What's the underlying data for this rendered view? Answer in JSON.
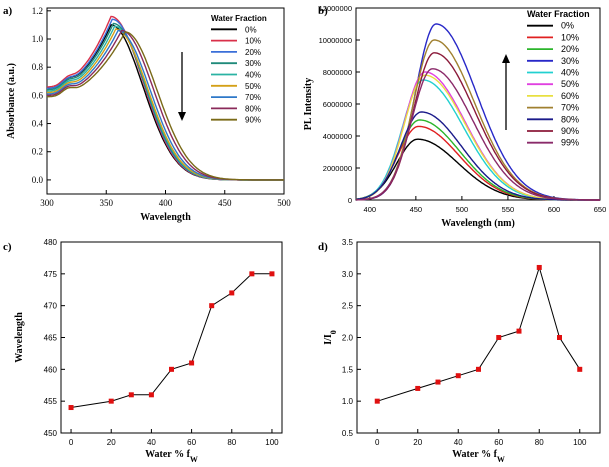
{
  "chart_data": [
    {
      "id": "a",
      "panel_label": "a)",
      "type": "line",
      "xlabel": "Wavelength",
      "ylabel": "Absorbance (a.u.)",
      "xlim": [
        300,
        500
      ],
      "ylim": [
        -0.1,
        1.22
      ],
      "xticks": [
        300,
        350,
        400,
        450,
        500
      ],
      "yticks": [
        0.0,
        0.2,
        0.4,
        0.6,
        0.8,
        1.0,
        1.2
      ],
      "legend_title": "Water Fraction",
      "annotation": "arrow-down",
      "series": [
        {
          "name": "0%",
          "color": "#000000",
          "peak_x": 354,
          "peak_y": 1.1,
          "base": 0.65
        },
        {
          "name": "10%",
          "color": "#d9304a",
          "peak_x": 354,
          "peak_y": 1.16,
          "base": 0.66
        },
        {
          "name": "20%",
          "color": "#3a6fd8",
          "peak_x": 355,
          "peak_y": 1.14,
          "base": 0.65
        },
        {
          "name": "30%",
          "color": "#1f8a7a",
          "peak_x": 356,
          "peak_y": 1.11,
          "base": 0.64
        },
        {
          "name": "40%",
          "color": "#2ab3a3",
          "peak_x": 357,
          "peak_y": 1.09,
          "base": 0.63
        },
        {
          "name": "50%",
          "color": "#d4a017",
          "peak_x": 358,
          "peak_y": 1.07,
          "base": 0.62
        },
        {
          "name": "70%",
          "color": "#2e78c8",
          "peak_x": 360,
          "peak_y": 1.06,
          "base": 0.61
        },
        {
          "name": "80%",
          "color": "#8a2a5a",
          "peak_x": 363,
          "peak_y": 1.06,
          "base": 0.6
        },
        {
          "name": "90%",
          "color": "#7a6a18",
          "peak_x": 366,
          "peak_y": 1.05,
          "base": 0.59
        }
      ]
    },
    {
      "id": "b",
      "panel_label": "b)",
      "type": "line",
      "xlabel": "Wavelength (nm)",
      "ylabel": "PL Intensity",
      "xlim": [
        385,
        650
      ],
      "ylim": [
        0,
        12000000
      ],
      "xticks": [
        400,
        450,
        500,
        550,
        600,
        650
      ],
      "yticks": [
        0,
        2000000,
        4000000,
        6000000,
        8000000,
        10000000,
        12000000
      ],
      "ytick_labels": [
        "0",
        "2000000",
        "4000000",
        "6000000",
        "8000000",
        "10000000",
        "12000000"
      ],
      "legend_title": "Water Fraction",
      "annotation": "arrow-up",
      "series": [
        {
          "name": "0%",
          "color": "#000000",
          "peak_x": 452,
          "peak_y": 3800000
        },
        {
          "name": "10%",
          "color": "#e02020",
          "peak_x": 453,
          "peak_y": 4600000
        },
        {
          "name": "20%",
          "color": "#2bb52b",
          "peak_x": 454,
          "peak_y": 5000000
        },
        {
          "name": "30%",
          "color": "#2828c8",
          "peak_x": 472,
          "peak_y": 11000000
        },
        {
          "name": "40%",
          "color": "#22d0d0",
          "peak_x": 458,
          "peak_y": 7500000
        },
        {
          "name": "50%",
          "color": "#e040e0",
          "peak_x": 460,
          "peak_y": 8000000
        },
        {
          "name": "60%",
          "color": "#e8e040",
          "peak_x": 460,
          "peak_y": 7800000
        },
        {
          "name": "70%",
          "color": "#a08030",
          "peak_x": 470,
          "peak_y": 10000000
        },
        {
          "name": "80%",
          "color": "#1a1a8a",
          "peak_x": 456,
          "peak_y": 5500000
        },
        {
          "name": "90%",
          "color": "#8b1a3a",
          "peak_x": 470,
          "peak_y": 9200000
        },
        {
          "name": "99%",
          "color": "#8a2a6a",
          "peak_x": 468,
          "peak_y": 8200000
        }
      ]
    },
    {
      "id": "c",
      "panel_label": "c)",
      "type": "line",
      "xlabel": "Water % f",
      "xlabel_sub": "W",
      "ylabel": "Wavelength",
      "xlim": [
        -5,
        105
      ],
      "ylim": [
        450,
        480
      ],
      "xticks": [
        0,
        20,
        40,
        60,
        80,
        100
      ],
      "yticks": [
        450,
        455,
        460,
        465,
        470,
        475,
        480
      ],
      "x": [
        0,
        20,
        30,
        40,
        50,
        60,
        70,
        80,
        90,
        100
      ],
      "values": [
        454,
        455,
        456,
        456,
        460,
        461,
        470,
        472,
        475,
        475
      ],
      "marker_color": "#e01010"
    },
    {
      "id": "d",
      "panel_label": "d)",
      "type": "line",
      "xlabel": "Water % f",
      "xlabel_sub": "W",
      "ylabel": "I/I",
      "ylabel_sub": "0",
      "xlim": [
        -10,
        110
      ],
      "ylim": [
        0.5,
        3.5
      ],
      "xticks": [
        0,
        20,
        40,
        60,
        80,
        100
      ],
      "yticks": [
        0.5,
        1.0,
        1.5,
        2.0,
        2.5,
        3.0,
        3.5
      ],
      "x": [
        0,
        20,
        30,
        40,
        50,
        60,
        70,
        80,
        90,
        100
      ],
      "values": [
        1.0,
        1.2,
        1.3,
        1.4,
        1.5,
        2.0,
        2.1,
        3.1,
        2.0,
        1.5
      ],
      "marker_color": "#e01010"
    }
  ]
}
